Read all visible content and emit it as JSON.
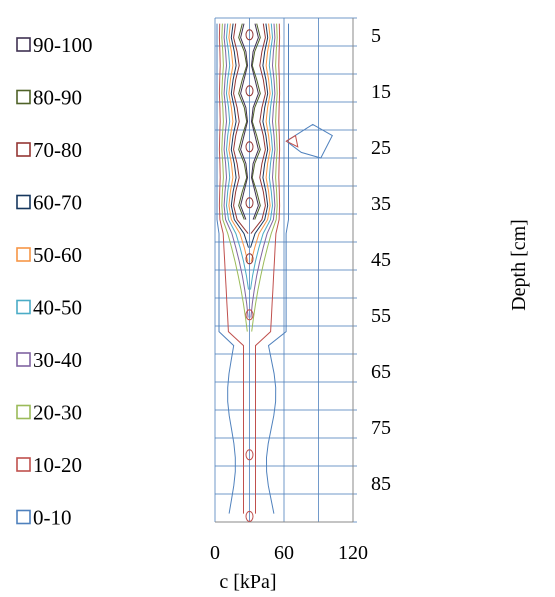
{
  "chart_data": {
    "type": "contour",
    "title": "",
    "xlabel": "c [kPa]",
    "ylabel": "Depth [cm]",
    "x_ticks": [
      0,
      60,
      120
    ],
    "x_tick_labels": [
      "0",
      "60",
      "120"
    ],
    "xlim": [
      0,
      120
    ],
    "y_ticks": [
      5,
      15,
      25,
      35,
      45,
      55,
      65,
      75,
      85
    ],
    "y_tick_labels": [
      "5",
      "15",
      "25",
      "35",
      "45",
      "55",
      "65",
      "75",
      "85"
    ],
    "ylim": [
      2,
      92
    ],
    "y_reversed": true,
    "grid": true,
    "legend_position": "left",
    "series": [
      {
        "name": "90-100",
        "color": "#3f3151"
      },
      {
        "name": "80-90",
        "color": "#4f6228"
      },
      {
        "name": "70-80",
        "color": "#943634"
      },
      {
        "name": "60-70",
        "color": "#17375e"
      },
      {
        "name": "50-60",
        "color": "#f79646"
      },
      {
        "name": "40-50",
        "color": "#4bacc6"
      },
      {
        "name": "30-40",
        "color": "#8064a2"
      },
      {
        "name": "20-30",
        "color": "#9bbb59"
      },
      {
        "name": "10-20",
        "color": "#c0504d"
      },
      {
        "name": "0-10",
        "color": "#4f81bd"
      }
    ],
    "peaks": [
      {
        "x": 30,
        "depth": 5
      },
      {
        "x": 30,
        "depth": 15
      },
      {
        "x": 30,
        "depth": 25
      },
      {
        "x": 30,
        "depth": 35
      },
      {
        "x": 30,
        "depth": 45
      },
      {
        "x": 30,
        "depth": 55
      },
      {
        "x": 30,
        "depth": 80
      },
      {
        "x": 30,
        "depth": 91
      }
    ]
  }
}
